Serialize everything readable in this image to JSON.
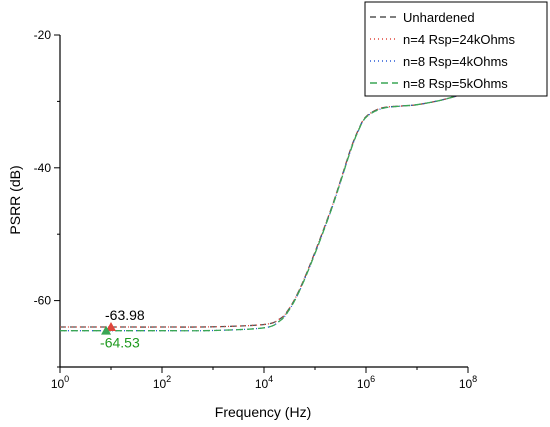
{
  "chart_data": {
    "type": "line",
    "xlabel": "Frequency (Hz)",
    "ylabel": "PSRR (dB)",
    "x_scale": "log",
    "xlim": [
      1,
      100000000
    ],
    "ylim": [
      -70,
      -20
    ],
    "x_ticks": [
      {
        "value": 1,
        "base": "10",
        "exp": "0"
      },
      {
        "value": 100,
        "base": "10",
        "exp": "2"
      },
      {
        "value": 10000,
        "base": "10",
        "exp": "4"
      },
      {
        "value": 1000000,
        "base": "10",
        "exp": "6"
      },
      {
        "value": 100000000,
        "base": "10",
        "exp": "8"
      }
    ],
    "y_ticks": [
      {
        "value": -20,
        "label": "-20"
      },
      {
        "value": -40,
        "label": "-40"
      },
      {
        "value": -60,
        "label": "-60"
      }
    ],
    "grid": false,
    "legend_position": "top-right",
    "series": [
      {
        "name": "Unhardened",
        "color": "#555555",
        "dash": "6,4",
        "x": [
          1,
          10,
          100,
          1000,
          10000,
          20000,
          30000,
          50000,
          100000,
          200000,
          300000,
          500000,
          700000,
          1000000,
          2000000,
          5000000,
          10000000,
          30000000,
          100000000
        ],
        "y": [
          -63.98,
          -63.98,
          -63.98,
          -63.95,
          -63.6,
          -62.8,
          -61.4,
          -58.3,
          -52.7,
          -46.5,
          -42.5,
          -37.2,
          -34.4,
          -32.3,
          -31.0,
          -30.7,
          -30.5,
          -29.8,
          -28.7
        ]
      },
      {
        "name": "n=4 Rsp=24kOhms",
        "color": "#e0463c",
        "dash": "1,3",
        "x": [
          1,
          10,
          100,
          1000,
          10000,
          20000,
          30000,
          50000,
          100000,
          200000,
          300000,
          500000,
          700000,
          1000000,
          2000000,
          5000000,
          10000000,
          30000000,
          100000000
        ],
        "y": [
          -63.98,
          -63.98,
          -63.98,
          -63.95,
          -63.6,
          -62.8,
          -61.4,
          -58.3,
          -52.7,
          -46.5,
          -42.5,
          -37.2,
          -34.4,
          -32.3,
          -31.0,
          -30.7,
          -30.5,
          -29.8,
          -28.7
        ]
      },
      {
        "name": "n=8 Rsp=4kOhms",
        "color": "#2a5bd7",
        "dash": "1,3",
        "x": [
          1,
          10,
          100,
          1000,
          10000,
          20000,
          30000,
          50000,
          100000,
          200000,
          300000,
          500000,
          700000,
          1000000,
          2000000,
          5000000,
          10000000,
          30000000,
          100000000
        ],
        "y": [
          -64.53,
          -64.53,
          -64.53,
          -64.5,
          -64.1,
          -63.1,
          -61.6,
          -58.5,
          -52.9,
          -46.7,
          -42.7,
          -37.4,
          -34.5,
          -32.4,
          -31.1,
          -30.7,
          -30.5,
          -29.8,
          -28.7
        ]
      },
      {
        "name": "n=8 Rsp=5kOhms",
        "color": "#3aa655",
        "dash": "7,4",
        "x": [
          1,
          10,
          100,
          1000,
          10000,
          20000,
          30000,
          50000,
          100000,
          200000,
          300000,
          500000,
          700000,
          1000000,
          2000000,
          5000000,
          10000000,
          30000000,
          100000000
        ],
        "y": [
          -64.53,
          -64.53,
          -64.53,
          -64.5,
          -64.1,
          -63.1,
          -61.6,
          -58.5,
          -52.9,
          -46.7,
          -42.7,
          -37.4,
          -34.5,
          -32.4,
          -31.1,
          -30.7,
          -30.5,
          -29.8,
          -28.7
        ]
      }
    ],
    "annotations": [
      {
        "text": "-63.98",
        "x": 10,
        "y": -63.98,
        "color": "#000000",
        "marker_color": "#e0463c",
        "placement": "above"
      },
      {
        "text": "-64.53",
        "x": 8,
        "y": -64.53,
        "color": "#1f9a1f",
        "marker_color": "#3aa655",
        "placement": "below"
      }
    ]
  }
}
